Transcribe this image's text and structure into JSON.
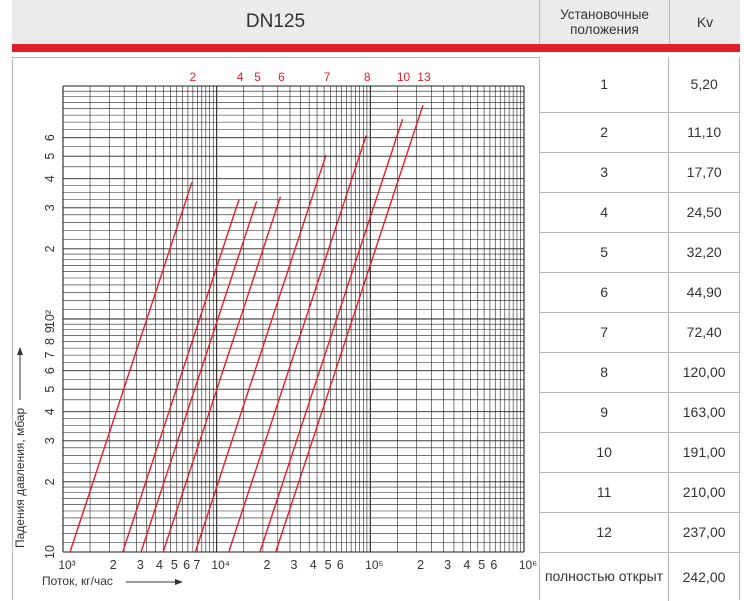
{
  "header": {
    "title": "DN125",
    "col_position": "Установочные положения",
    "col_kv": "Kv"
  },
  "colors": {
    "accent": "#e21f26",
    "grid": "#222222",
    "header_bg": "#ebebeb"
  },
  "table": [
    {
      "pos": "1",
      "kv": "5,20"
    },
    {
      "pos": "2",
      "kv": "11,10"
    },
    {
      "pos": "3",
      "kv": "17,70"
    },
    {
      "pos": "4",
      "kv": "24,50"
    },
    {
      "pos": "5",
      "kv": "32,20"
    },
    {
      "pos": "6",
      "kv": "44,90"
    },
    {
      "pos": "7",
      "kv": "72,40"
    },
    {
      "pos": "8",
      "kv": "120,00"
    },
    {
      "pos": "9",
      "kv": "163,00"
    },
    {
      "pos": "10",
      "kv": "191,00"
    },
    {
      "pos": "11",
      "kv": "210,00"
    },
    {
      "pos": "12",
      "kv": "237,00"
    },
    {
      "pos": "полностью открыт",
      "kv": "242,00"
    }
  ],
  "chart_data": {
    "type": "line",
    "xscale": "log",
    "yscale": "log",
    "xlim": [
      1000,
      1000000
    ],
    "ylim": [
      10,
      1000
    ],
    "xlabel": "Поток, кг/час",
    "ylabel": "Падения давления, мбар",
    "grid": true,
    "x_ticks": [
      {
        "v": 1000,
        "t": "10³"
      },
      {
        "v": 2000,
        "t": "2"
      },
      {
        "v": 3000,
        "t": "3"
      },
      {
        "v": 4000,
        "t": "4"
      },
      {
        "v": 5000,
        "t": "5"
      },
      {
        "v": 6000,
        "t": "6"
      },
      {
        "v": 7000,
        "t": "7"
      },
      {
        "v": 10000,
        "t": "10⁴"
      },
      {
        "v": 20000,
        "t": "2"
      },
      {
        "v": 30000,
        "t": "3"
      },
      {
        "v": 40000,
        "t": "4"
      },
      {
        "v": 50000,
        "t": "5"
      },
      {
        "v": 60000,
        "t": "6"
      },
      {
        "v": 100000,
        "t": "10⁵"
      },
      {
        "v": 200000,
        "t": "2"
      },
      {
        "v": 300000,
        "t": "3"
      },
      {
        "v": 400000,
        "t": "4"
      },
      {
        "v": 500000,
        "t": "5"
      },
      {
        "v": 600000,
        "t": "6"
      },
      {
        "v": 1000000,
        "t": "10⁶"
      }
    ],
    "y_ticks": [
      {
        "v": 10,
        "t": "10"
      },
      {
        "v": 20,
        "t": "2"
      },
      {
        "v": 30,
        "t": "3"
      },
      {
        "v": 40,
        "t": "4"
      },
      {
        "v": 50,
        "t": "5"
      },
      {
        "v": 60,
        "t": "6"
      },
      {
        "v": 70,
        "t": "7"
      },
      {
        "v": 80,
        "t": "8"
      },
      {
        "v": 90,
        "t": "9"
      },
      {
        "v": 100,
        "t": "10²"
      },
      {
        "v": 200,
        "t": "2"
      },
      {
        "v": 300,
        "t": "3"
      },
      {
        "v": 400,
        "t": "4"
      },
      {
        "v": 500,
        "t": "5"
      },
      {
        "v": 600,
        "t": "6"
      }
    ],
    "series": [
      {
        "name": "2",
        "kv": 11.1,
        "points": [
          [
            1000,
            8.1
          ],
          [
            6900,
            386
          ]
        ]
      },
      {
        "name": "4",
        "kv": 24.5,
        "points": [
          [
            2410,
            9.7
          ],
          [
            14000,
            327
          ]
        ]
      },
      {
        "name": "5",
        "kv": 32.2,
        "points": [
          [
            2950,
            8.4
          ],
          [
            18200,
            320
          ]
        ]
      },
      {
        "name": "6",
        "kv": 44.9,
        "points": [
          [
            3500,
            6.1
          ],
          [
            26000,
            335
          ]
        ]
      },
      {
        "name": "7",
        "kv": 72.4,
        "points": [
          [
            6120,
            7.1
          ],
          [
            51500,
            506
          ]
        ]
      },
      {
        "name": "8",
        "kv": 120.0,
        "points": [
          [
            9880,
            6.8
          ],
          [
            94000,
            614
          ]
        ]
      },
      {
        "name": "10",
        "kv": 191.0,
        "points": [
          [
            17000,
            7.9
          ],
          [
            162000,
            720
          ]
        ]
      },
      {
        "name": "13",
        "kv": 242.0,
        "points": [
          [
            21400,
            7.8
          ],
          [
            220000,
            827
          ]
        ]
      }
    ]
  }
}
